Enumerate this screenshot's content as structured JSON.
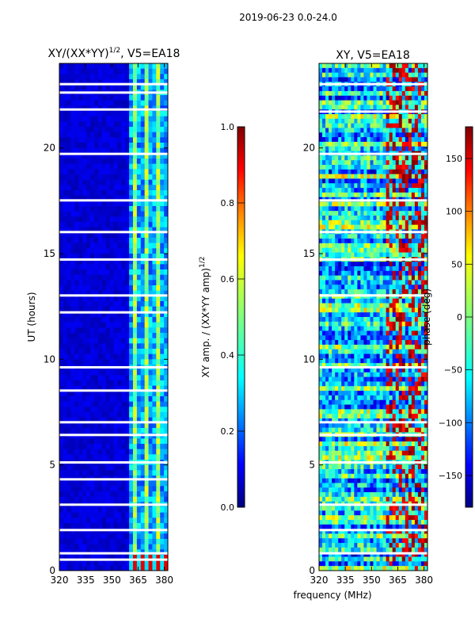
{
  "figure_title": "2019-06-23 0.0-24.0",
  "colors": {
    "white": "#ffffff",
    "axis": "#000000",
    "jet": [
      "#00007f",
      "#0000ff",
      "#007fff",
      "#00ffff",
      "#7fff7f",
      "#ffff00",
      "#ff7f00",
      "#ff0000",
      "#7f0000"
    ]
  },
  "chart_data": [
    {
      "type": "heatmap",
      "title": "XY/(XX*YY)^1/2, V5=EA18",
      "title_main": "XY/(XX*YY)",
      "title_sup": "1/2",
      "title_tail": ", V5=EA18",
      "xlabel": "",
      "ylabel": "UT (hours)",
      "xlim": [
        320,
        382
      ],
      "ylim": [
        0,
        24
      ],
      "xticks": [
        320,
        335,
        350,
        365,
        380
      ],
      "yticks": [
        0,
        5,
        10,
        15,
        20
      ],
      "colorbar": {
        "label": "XY amp. / (XX*YY amp)^1/2",
        "label_main": "XY amp. / (XX*YY amp)",
        "label_sup": "1/2",
        "range": [
          0.0,
          1.0
        ],
        "ticks": [
          "0.0",
          "0.2",
          "0.4",
          "0.6",
          "0.8",
          "1.0"
        ]
      },
      "blank_rows_hours": [
        23.0,
        22.6,
        21.8,
        19.7,
        17.5,
        16.0,
        14.7,
        13.0,
        12.2,
        9.6,
        8.5,
        7.0,
        6.4,
        5.1,
        4.3,
        3.1,
        1.9,
        0.8,
        0.5
      ],
      "bright_band_mhz": [
        361,
        382
      ]
    },
    {
      "type": "heatmap",
      "title": "XY, V5=EA18",
      "xlabel": "frequency (MHz)",
      "ylabel": "",
      "xlim": [
        320,
        382
      ],
      "ylim": [
        0,
        24
      ],
      "xticks": [
        320,
        335,
        350,
        365,
        380
      ],
      "yticks": [
        0,
        5,
        10,
        15,
        20
      ],
      "colorbar": {
        "label": "phase (deg)",
        "range": [
          -180,
          180
        ],
        "ticks": [
          "−150",
          "−100",
          "−50",
          "0",
          "50",
          "100",
          "150"
        ]
      },
      "blank_rows_hours": [
        23.0,
        21.7,
        19.7,
        17.5,
        16.0,
        14.7,
        13.0,
        9.6,
        7.0,
        6.4,
        5.1,
        3.1,
        1.9,
        0.8
      ]
    }
  ]
}
